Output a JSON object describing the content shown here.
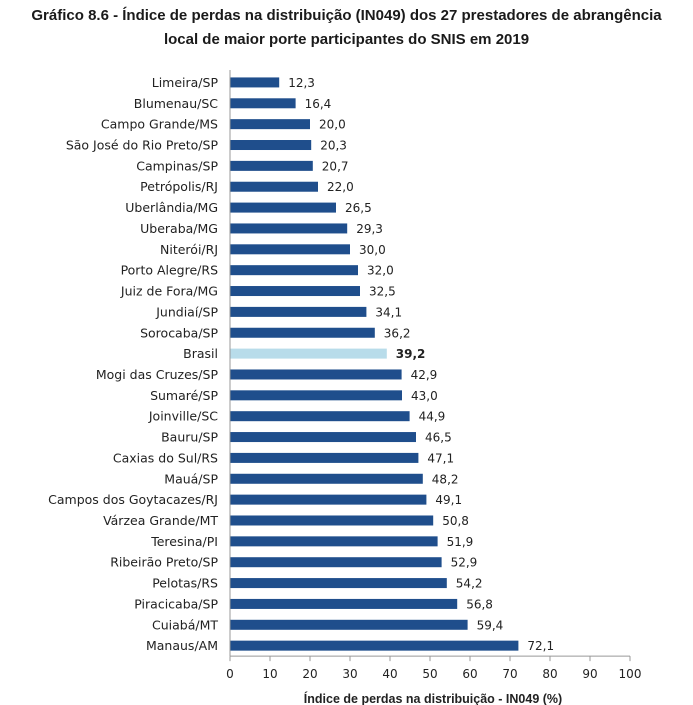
{
  "title_line1": "Gráfico 8.6 - Índice de perdas na distribuição (IN049) dos 27 prestadores de abrangência",
  "title_line2": "local de maior porte participantes do SNIS em 2019",
  "colors": {
    "bar": "#1f4e8c",
    "highlight": "#b8dcea",
    "axis": "#999999"
  },
  "chart_data": {
    "type": "bar",
    "orientation": "horizontal",
    "categories": [
      "Limeira/SP",
      "Blumenau/SC",
      "Campo Grande/MS",
      "São José do Rio Preto/SP",
      "Campinas/SP",
      "Petrópolis/RJ",
      "Uberlândia/MG",
      "Uberaba/MG",
      "Niterói/RJ",
      "Porto Alegre/RS",
      "Juiz de Fora/MG",
      "Jundiaí/SP",
      "Sorocaba/SP",
      "Brasil",
      "Mogi das Cruzes/SP",
      "Sumaré/SP",
      "Joinville/SC",
      "Bauru/SP",
      "Caxias do Sul/RS",
      "Mauá/SP",
      "Campos dos Goytacazes/RJ",
      "Várzea Grande/MT",
      "Teresina/PI",
      "Ribeirão Preto/SP",
      "Pelotas/RS",
      "Piracicaba/SP",
      "Cuiabá/MT",
      "Manaus/AM"
    ],
    "values": [
      12.3,
      16.4,
      20.0,
      20.3,
      20.7,
      22.0,
      26.5,
      29.3,
      30.0,
      32.0,
      32.5,
      34.1,
      36.2,
      39.2,
      42.9,
      43.0,
      44.9,
      46.5,
      47.1,
      48.2,
      49.1,
      50.8,
      51.9,
      52.9,
      54.2,
      56.8,
      59.4,
      72.1
    ],
    "value_labels": [
      "12,3",
      "16,4",
      "20,0",
      "20,3",
      "20,7",
      "22,0",
      "26,5",
      "29,3",
      "30,0",
      "32,0",
      "32,5",
      "34,1",
      "36,2",
      "39,2",
      "42,9",
      "43,0",
      "44,9",
      "46,5",
      "47,1",
      "48,2",
      "49,1",
      "50,8",
      "51,9",
      "52,9",
      "54,2",
      "56,8",
      "59,4",
      "72,1"
    ],
    "highlight_category": "Brasil",
    "xlabel": "Índice de perdas na distribuição - IN049 (%)",
    "xlim": [
      0,
      100
    ],
    "xticks": [
      "0",
      "10",
      "20",
      "30",
      "40",
      "50",
      "60",
      "70",
      "80",
      "90",
      "100"
    ],
    "grid": false
  }
}
